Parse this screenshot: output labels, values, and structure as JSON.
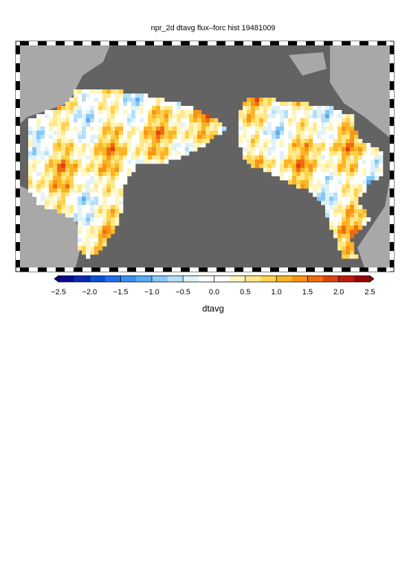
{
  "title": "npr_2d dtavg flux–forc hist 19481009",
  "colorbar": {
    "label": "dtavg",
    "range": [
      -2.5,
      2.5
    ],
    "ticks": [
      {
        "value": -2.5,
        "label": "−2.5"
      },
      {
        "value": -2.0,
        "label": "−2.0"
      },
      {
        "value": -1.5,
        "label": "−1.5"
      },
      {
        "value": -1.0,
        "label": "−1.0"
      },
      {
        "value": -0.5,
        "label": "−0.5"
      },
      {
        "value": 0.0,
        "label": "0.0"
      },
      {
        "value": 0.5,
        "label": "0.5"
      },
      {
        "value": 1.0,
        "label": "1.0"
      },
      {
        "value": 1.5,
        "label": "1.5"
      },
      {
        "value": 2.0,
        "label": "2.0"
      },
      {
        "value": 2.5,
        "label": "2.5"
      }
    ],
    "colors": [
      "#0a0a8c",
      "#0b2ab4",
      "#0b4fd6",
      "#1c6fe6",
      "#3b8fee",
      "#5aacf5",
      "#86c8f7",
      "#b5e0f7",
      "#dff2f7",
      "#ffffff",
      "#ffffff",
      "#fff6c0",
      "#ffe88a",
      "#ffd24d",
      "#fbb426",
      "#f89418",
      "#ee6c10",
      "#dd420c",
      "#c01a0a",
      "#96060a"
    ]
  }
}
